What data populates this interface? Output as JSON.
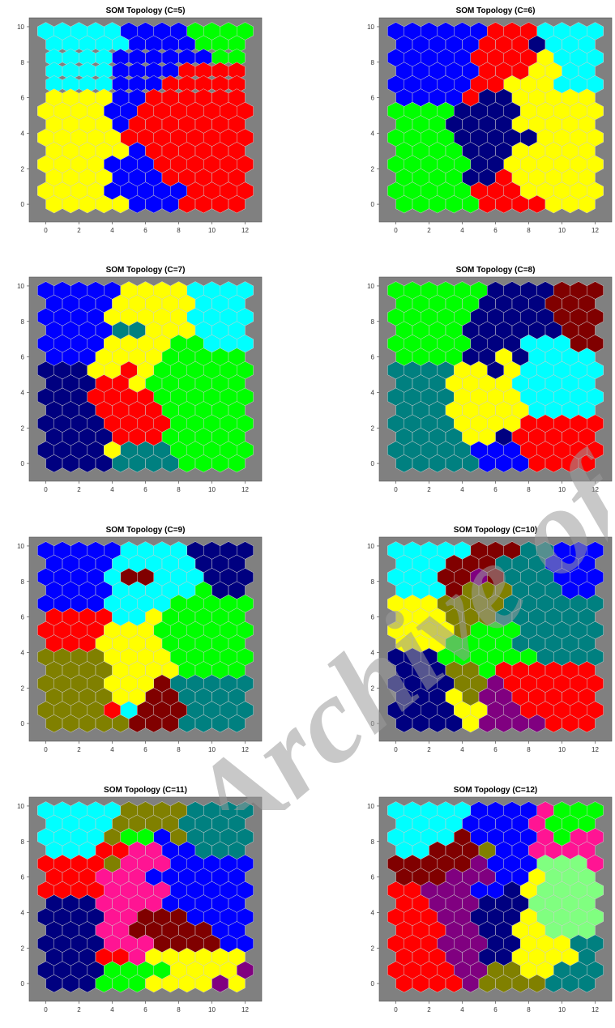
{
  "palette": {
    "Y": "#ffff00",
    "R": "#ff0000",
    "B": "#0000ff",
    "G": "#00ff00",
    "C": "#00ffff",
    "N": "#000080",
    "T": "#008080",
    "M": "#800000",
    "O": "#808000",
    "P": "#800080",
    "K": "#ff1493",
    "L": "#80ff80"
  },
  "watermark": "Archive of SID",
  "chart_data": [
    {
      "type": "heatmap",
      "title": "SOM Topology (C=5)",
      "xlim": [
        -1,
        13
      ],
      "ylim": [
        -1,
        10.5
      ],
      "xticks": [
        0,
        2,
        4,
        6,
        8,
        10,
        12
      ],
      "yticks": [
        0,
        2,
        4,
        6,
        8,
        10
      ],
      "rows": [
        "CCCCCBBBBGGGG",
        "CCCCCBBBBGGG",
        "CCCCBBBBBBGG",
        "CCCCBBBBRRRR",
        "CCCCBBBRRRRR",
        "YYYYBBRRRRRR",
        "YYYYBBRRRRRRR",
        "YYYYBRRRRRRR",
        "YYYYYRRRRRRRR",
        "YYYYYBRRRRRR",
        "YYYYBBBRRRRRR",
        "YYYYBBBRRRRR",
        "YYYYBBBBBRRRR",
        "YYYYYBBBRRRR"
      ]
    },
    {
      "type": "heatmap",
      "title": "SOM Topology (C=6)",
      "xlim": [
        -1,
        13
      ],
      "ylim": [
        -1,
        10.5
      ],
      "xticks": [
        0,
        2,
        4,
        6,
        8,
        10,
        12
      ],
      "yticks": [
        0,
        2,
        4,
        6,
        8,
        10
      ],
      "rows": [
        "BBBBBBRRRCCCC",
        "BBBBBRRRNCCC",
        "BBBBBRRRRYCCC",
        "BBBBBRRRYYCC",
        "BBBBBRRYYYCCC",
        "BBBBRNNYYYYY",
        "GGGGNNNNYYYYY",
        "GGGNNNNYYYYY",
        "GGGGNNNNNYYYY",
        "GGGGNNNYYYYY",
        "GGGGGNNYYYYYY",
        "GGGGNNRYYYYY",
        "GGGGGRRRYYYYY",
        "GGGGGRRRRYYY"
      ]
    },
    {
      "type": "heatmap",
      "title": "SOM Topology (C=7)",
      "xlim": [
        -1,
        13
      ],
      "ylim": [
        -1,
        10.5
      ],
      "xticks": [
        0,
        2,
        4,
        6,
        8,
        10,
        12
      ],
      "yticks": [
        0,
        2,
        4,
        6,
        8,
        10
      ],
      "rows": [
        "BBBBBYYYYCCCC",
        "BBBBYYYYYCCC",
        "BBBBYYYYYCCCC",
        "BBBBTTYYYCCC",
        "BBBBYYYYGGCCC",
        "BBBYYYYGGGGG",
        "NNNYYRYGGGGGG",
        "NNNRRYGGGGGG",
        "NNNRRRRGGGGGG",
        "NNNRRRRGGGGG",
        "NNNNRRRRGGGGG",
        "NNNNRRRGGGGG",
        "NNNNYTTTGGGGG",
        "NNNNTTTTGGGG"
      ]
    },
    {
      "type": "heatmap",
      "title": "SOM Topology (C=8)",
      "xlim": [
        -1,
        13
      ],
      "ylim": [
        -1,
        10.5
      ],
      "xticks": [
        0,
        2,
        4,
        6,
        8,
        10,
        12
      ],
      "yticks": [
        0,
        2,
        4,
        6,
        8,
        10
      ],
      "rows": [
        "GGGGGGNNNNMMM",
        "GGGGGNNNNMMM",
        "GGGGGNNNNNMMM",
        "GGGGNNNNNNMM",
        "GGGGGNNNCCCMM",
        "GGGGNNYNCCCC",
        "TTTTYYNYCCCCC",
        "TTTYYYYCCCCC",
        "TTTTYYYYCCCCC",
        "TTTYYYYYCCCC",
        "TTTTYYYYRRRRR",
        "TTTTYYNRRRRR",
        "TTTTTBBBRRRRR",
        "TTTTTBBBRRRR"
      ]
    },
    {
      "type": "heatmap",
      "title": "SOM Topology (C=9)",
      "xlim": [
        -1,
        13
      ],
      "ylim": [
        -1,
        10.5
      ],
      "xticks": [
        0,
        2,
        4,
        6,
        8,
        10,
        12
      ],
      "yticks": [
        0,
        2,
        4,
        6,
        8,
        10
      ],
      "rows": [
        "BBBBBCCCCNNNN",
        "BBBBCCCCCNNN",
        "BBBBCMMCCCNNN",
        "BBBBCCCCCGNN",
        "BBBBCCCCGGGGG",
        "RRRRCCYGGGGG",
        "RRRRYYYGGGGGG",
        "RRRYYYYGGGGG",
        "OOOOYYYYGGGGG",
        "OOOOYYYYGGGG",
        "OOOOYYYMTTTTT",
        "OOOOYYMMTTTT",
        "OOOORCMMMTTTT",
        "OOOOOMMMTTTT"
      ]
    },
    {
      "type": "heatmap",
      "title": "SOM Topology (C=10)",
      "xlim": [
        -1,
        13
      ],
      "ylim": [
        -1,
        10.5
      ],
      "xticks": [
        0,
        2,
        4,
        6,
        8,
        10,
        12
      ],
      "yticks": [
        0,
        2,
        4,
        6,
        8,
        10
      ],
      "rows": [
        "CCCCCMMMTTBBB",
        "CCCMMMTTTBBB",
        "CCCMMPMTTTBBB",
        "CCCMOOOTTTBB",
        "YYYOOOOTTTTTT",
        "YYYOOOTTTTTT",
        "YYYYOGGGTTTTT",
        "YYYGGGGTTTTT",
        "NNNGGGGGGTTTT",
        "NNNOOGRRRRRR",
        "NNNNOOPRRRRRR",
        "NNNYOPPRRRRR",
        "NNNNYYPPRRRRR",
        "NNNNYPPPPRRR"
      ]
    },
    {
      "type": "heatmap",
      "title": "SOM Topology (C=11)",
      "xlim": [
        -1,
        13
      ],
      "ylim": [
        -1,
        10.5
      ],
      "xticks": [
        0,
        2,
        4,
        6,
        8,
        10,
        12
      ],
      "yticks": [
        0,
        2,
        4,
        6,
        8,
        10
      ],
      "rows": [
        "CCCCCOOOOTTTT",
        "CCCCOOOOTTTT",
        "CCCCOGGBOTTTT",
        "CCCRRKKBBTTT",
        "RRRROKKKBBBBB",
        "RRRKKKBBBBBB",
        "RRRRKKKKBBBBB",
        "NNNKKKKBBBBB",
        "NNNNKKMMMBBBB",
        "NNNKKMMMMMBB",
        "NNNNKKKMMMMBB",
        "NNNRRKYYYYYY",
        "NNNNGGGGYYYYP",
        "NNNGGGYYYYPY"
      ]
    },
    {
      "type": "heatmap",
      "title": "SOM Topology (C=12)",
      "xlim": [
        -1,
        13
      ],
      "ylim": [
        -1,
        10.5
      ],
      "xticks": [
        0,
        2,
        4,
        6,
        8,
        10,
        12
      ],
      "yticks": [
        0,
        2,
        4,
        6,
        8,
        10
      ],
      "rows": [
        "CCCCCBBBBKGGG",
        "CCCCBBBBKGGG",
        "CCCCMBBBBKGKK",
        "CCMMMOBBKKKK",
        "MMMMMPBBBLLLK",
        "MMMPPPBBYLLL",
        "RRPPPBBNYLLLL",
        "RRPPPNNNLLLL",
        "RRRPPNNNYLLLL",
        "RRRPPNNYYLLL",
        "RRRPPPNNYYYTT",
        "RRRPPNNYYYYT",
        "RRRRPPOOYYTTT",
        "RRRRPOOOOTTT"
      ]
    }
  ]
}
